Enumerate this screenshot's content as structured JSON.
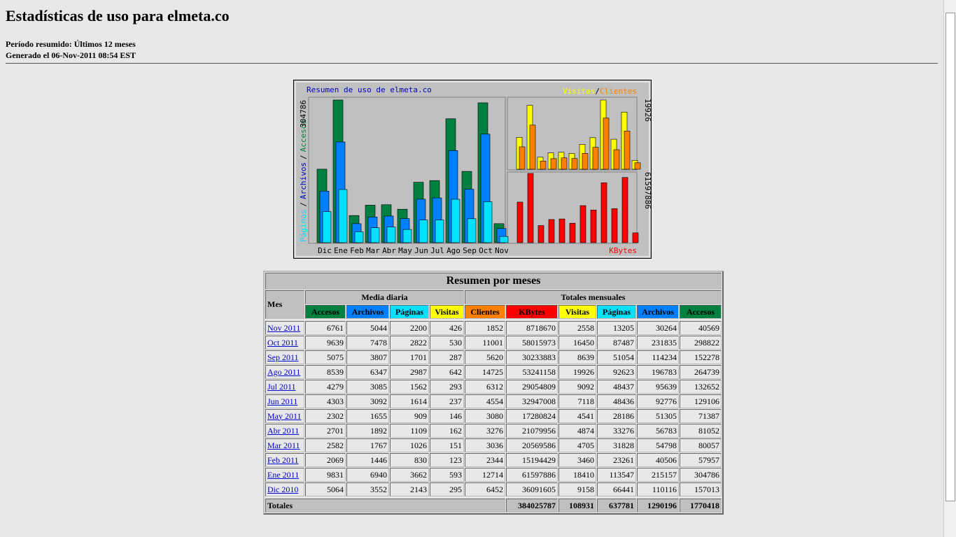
{
  "header": {
    "title": "Estadísticas de uso para elmeta.co",
    "period": "Período resumido: Últimos 12 meses",
    "generated": "Generado el 06-Nov-2011 08:54 EST"
  },
  "graph": {
    "title": "Resumen de uso de elmeta.co",
    "separator": "/",
    "pages_label": "Páginas",
    "files_label": "Archivos",
    "hits_label": "Accesos",
    "hits_max": 304786,
    "visits_label": "Visitas",
    "clients_label": "Clientes",
    "visits_max": 19926,
    "kbytes_max": 61597886,
    "kbytes_label": "KBytes",
    "months": [
      "Dic",
      "Ene",
      "Feb",
      "Mar",
      "Abr",
      "May",
      "Jun",
      "Jul",
      "Ago",
      "Sep",
      "Oct",
      "Nov"
    ]
  },
  "table": {
    "title": "Resumen por meses",
    "month_header": "Mes",
    "daily_header": "Media diaria",
    "monthly_header": "Totales mensuales",
    "daily_columns": [
      {
        "name": "Accesos",
        "color": "#008040"
      },
      {
        "name": "Archivos",
        "color": "#0080ff"
      },
      {
        "name": "Páginas",
        "color": "#00e0ff"
      },
      {
        "name": "Visitas",
        "color": "#ffff00"
      }
    ],
    "monthly_columns": [
      {
        "name": "Clientes",
        "color": "#ff8000"
      },
      {
        "name": "KBytes",
        "color": "#ff0000"
      },
      {
        "name": "Visitas",
        "color": "#ffff00"
      },
      {
        "name": "Páginas",
        "color": "#00e0ff"
      },
      {
        "name": "Archivos",
        "color": "#0080ff"
      },
      {
        "name": "Accesos",
        "color": "#008040"
      }
    ],
    "rows": [
      [
        "Nov 2011",
        6761,
        5044,
        2200,
        426,
        1852,
        8718670,
        2558,
        13205,
        30264,
        40569
      ],
      [
        "Oct 2011",
        9639,
        7478,
        2822,
        530,
        11001,
        58015973,
        16450,
        87487,
        231835,
        298822
      ],
      [
        "Sep 2011",
        5075,
        3807,
        1701,
        287,
        5620,
        30233883,
        8639,
        51054,
        114234,
        152278
      ],
      [
        "Ago 2011",
        8539,
        6347,
        2987,
        642,
        14725,
        53241158,
        19926,
        92623,
        196783,
        264739
      ],
      [
        "Jul 2011",
        4279,
        3085,
        1562,
        293,
        6312,
        29054809,
        9092,
        48437,
        95639,
        132652
      ],
      [
        "Jun 2011",
        4303,
        3092,
        1614,
        237,
        4554,
        32947008,
        7118,
        48436,
        92776,
        129106
      ],
      [
        "May 2011",
        2302,
        1655,
        909,
        146,
        3080,
        17280824,
        4541,
        28186,
        51305,
        71387
      ],
      [
        "Abr 2011",
        2701,
        1892,
        1109,
        162,
        3276,
        21079956,
        4874,
        33276,
        56783,
        81052
      ],
      [
        "Mar 2011",
        2582,
        1767,
        1026,
        151,
        3036,
        20569586,
        4705,
        31828,
        54798,
        80057
      ],
      [
        "Feb 2011",
        2069,
        1446,
        830,
        123,
        2344,
        15194429,
        3460,
        23261,
        40506,
        57957
      ],
      [
        "Ene 2011",
        9831,
        6940,
        3662,
        593,
        12714,
        61597886,
        18410,
        113547,
        215157,
        304786
      ],
      [
        "Dic 2010",
        5064,
        3552,
        2143,
        295,
        6452,
        36091605,
        9158,
        66441,
        110116,
        157013
      ]
    ],
    "totals_label": "Totales",
    "totals": [
      384025787,
      108931,
      637781,
      1290196,
      1770418
    ]
  }
}
